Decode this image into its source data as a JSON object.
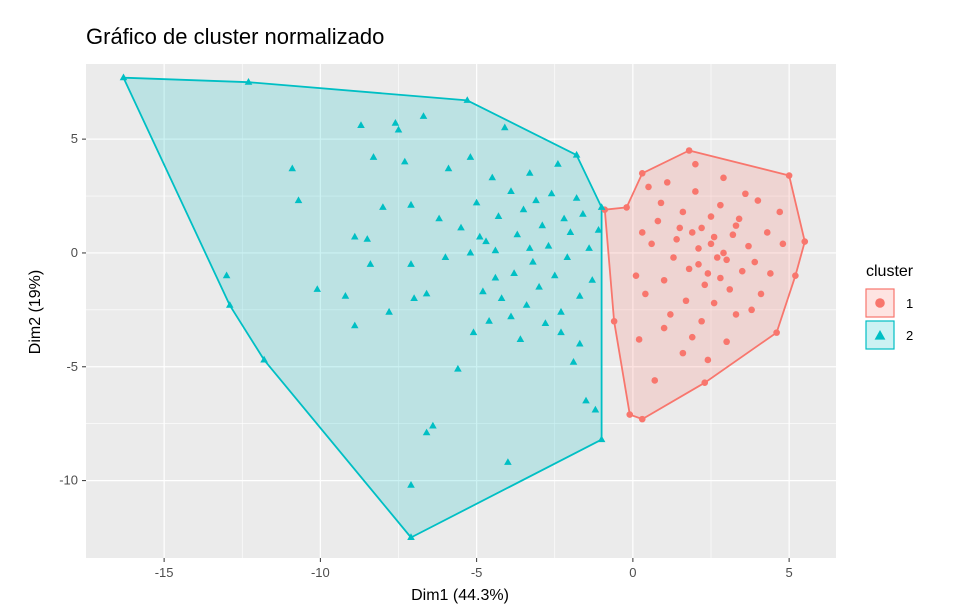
{
  "chart_data": {
    "type": "scatter",
    "title": "Gráfico de cluster normalizado",
    "xlabel": "Dim1 (44.3%)",
    "ylabel": "Dim2 (19%)",
    "xlim": [
      -17.5,
      6.5
    ],
    "ylim": [
      -13.4,
      8.3
    ],
    "x_ticks": [
      -15,
      -10,
      -5,
      0,
      5
    ],
    "x_tick_labels": [
      "-15",
      "-10",
      "-5",
      "0",
      "5"
    ],
    "y_ticks": [
      -10,
      -5,
      0,
      5
    ],
    "y_tick_labels": [
      "-10",
      "-5",
      "0",
      "5"
    ],
    "grid": true,
    "legend": {
      "title": "cluster",
      "position": "right"
    },
    "colors": {
      "1": "#F8766D",
      "2": "#00BFC4",
      "panel": "#EBEBEB",
      "grid": "#FFFFFF"
    },
    "series": [
      {
        "name": "1",
        "marker": "circle",
        "hull": [
          [
            -0.2,
            2.0
          ],
          [
            0.3,
            3.5
          ],
          [
            1.8,
            4.5
          ],
          [
            5.0,
            3.4
          ],
          [
            5.5,
            0.5
          ],
          [
            5.2,
            -1.0
          ],
          [
            4.6,
            -3.5
          ],
          [
            2.3,
            -5.7
          ],
          [
            0.3,
            -7.3
          ],
          [
            -0.1,
            -7.1
          ],
          [
            -0.6,
            -3.0
          ],
          [
            -0.9,
            1.9
          ]
        ],
        "points": [
          [
            -0.2,
            2.0
          ],
          [
            0.3,
            3.5
          ],
          [
            1.8,
            4.5
          ],
          [
            5.0,
            3.4
          ],
          [
            5.5,
            0.5
          ],
          [
            5.2,
            -1.0
          ],
          [
            4.6,
            -3.5
          ],
          [
            2.3,
            -5.7
          ],
          [
            0.3,
            -7.3
          ],
          [
            -0.1,
            -7.1
          ],
          [
            -0.6,
            -3.0
          ],
          [
            -0.9,
            1.9
          ],
          [
            2.1,
            0.2
          ],
          [
            2.6,
            0.7
          ],
          [
            3.0,
            -0.3
          ],
          [
            1.5,
            1.1
          ],
          [
            2.4,
            -0.9
          ],
          [
            3.4,
            1.5
          ],
          [
            1.0,
            -1.2
          ],
          [
            2.8,
            2.1
          ],
          [
            3.9,
            -0.4
          ],
          [
            1.7,
            -2.1
          ],
          [
            0.6,
            0.4
          ],
          [
            4.3,
            0.9
          ],
          [
            2.0,
            2.7
          ],
          [
            3.1,
            -1.6
          ],
          [
            1.3,
            -0.2
          ],
          [
            0.4,
            -1.8
          ],
          [
            3.6,
            2.6
          ],
          [
            2.2,
            -3.0
          ],
          [
            0.9,
            2.2
          ],
          [
            4.1,
            -1.8
          ],
          [
            1.6,
            -4.4
          ],
          [
            3.3,
            -2.7
          ],
          [
            0.2,
            -3.8
          ],
          [
            2.9,
            3.3
          ],
          [
            1.1,
            3.1
          ],
          [
            4.7,
            1.8
          ],
          [
            0.7,
            -5.6
          ],
          [
            1.9,
            -3.7
          ],
          [
            2.5,
            1.6
          ],
          [
            3.7,
            0.3
          ],
          [
            2.7,
            -0.2
          ],
          [
            1.4,
            0.6
          ],
          [
            2.3,
            -1.4
          ],
          [
            3.2,
            0.8
          ],
          [
            0.8,
            1.4
          ],
          [
            4.0,
            2.3
          ],
          [
            1.2,
            -2.7
          ],
          [
            2.6,
            -2.2
          ],
          [
            3.8,
            -2.5
          ],
          [
            0.5,
            2.9
          ],
          [
            2.0,
            3.9
          ],
          [
            4.4,
            -0.9
          ],
          [
            1.8,
            -0.7
          ],
          [
            2.9,
            0.0
          ],
          [
            2.2,
            1.1
          ],
          [
            3.5,
            -0.8
          ],
          [
            1.6,
            1.8
          ],
          [
            0.3,
            0.9
          ],
          [
            4.8,
            0.4
          ],
          [
            2.4,
            -4.7
          ],
          [
            3.0,
            -3.9
          ],
          [
            1.0,
            -3.3
          ],
          [
            0.1,
            -1.0
          ],
          [
            2.8,
            -1.1
          ],
          [
            1.9,
            0.9
          ],
          [
            3.3,
            1.2
          ],
          [
            2.1,
            -0.5
          ],
          [
            2.5,
            0.4
          ]
        ]
      },
      {
        "name": "2",
        "marker": "triangle",
        "hull": [
          [
            -16.3,
            7.7
          ],
          [
            -12.3,
            7.5
          ],
          [
            -5.3,
            6.7
          ],
          [
            -1.8,
            4.3
          ],
          [
            -1.0,
            2.0
          ],
          [
            -1.0,
            -8.2
          ],
          [
            -7.1,
            -12.5
          ],
          [
            -11.8,
            -4.7
          ],
          [
            -12.9,
            -2.3
          ]
        ],
        "points": [
          [
            -16.3,
            7.7
          ],
          [
            -12.3,
            7.5
          ],
          [
            -5.3,
            6.7
          ],
          [
            -1.8,
            4.3
          ],
          [
            -1.0,
            2.0
          ],
          [
            -1.0,
            -8.2
          ],
          [
            -7.1,
            -12.5
          ],
          [
            -11.8,
            -4.7
          ],
          [
            -12.9,
            -2.3
          ],
          [
            -13.0,
            -1.0
          ],
          [
            -10.9,
            3.7
          ],
          [
            -10.7,
            2.3
          ],
          [
            -10.1,
            -1.6
          ],
          [
            -9.2,
            -1.9
          ],
          [
            -8.9,
            -3.2
          ],
          [
            -8.9,
            0.7
          ],
          [
            -8.7,
            5.6
          ],
          [
            -8.5,
            0.6
          ],
          [
            -8.4,
            -0.5
          ],
          [
            -8.3,
            4.2
          ],
          [
            -8.0,
            2.0
          ],
          [
            -7.8,
            -2.6
          ],
          [
            -7.6,
            5.7
          ],
          [
            -7.5,
            5.4
          ],
          [
            -7.3,
            4.0
          ],
          [
            -7.1,
            2.1
          ],
          [
            -7.1,
            -0.5
          ],
          [
            -7.0,
            -2.0
          ],
          [
            -7.1,
            -10.2
          ],
          [
            -6.7,
            6.0
          ],
          [
            -6.6,
            -1.8
          ],
          [
            -6.6,
            -7.9
          ],
          [
            -6.4,
            -7.6
          ],
          [
            -6.2,
            1.5
          ],
          [
            -6.0,
            -0.2
          ],
          [
            -5.9,
            3.7
          ],
          [
            -5.6,
            -5.1
          ],
          [
            -5.5,
            1.1
          ],
          [
            -5.2,
            4.2
          ],
          [
            -5.1,
            -3.5
          ],
          [
            -5.0,
            2.2
          ],
          [
            -4.8,
            -1.7
          ],
          [
            -4.7,
            0.5
          ],
          [
            -4.6,
            -3.0
          ],
          [
            -4.5,
            3.3
          ],
          [
            -4.4,
            0.1
          ],
          [
            -4.3,
            1.6
          ],
          [
            -4.2,
            -2.0
          ],
          [
            -4.1,
            5.5
          ],
          [
            -4.0,
            -9.2
          ],
          [
            -3.9,
            2.7
          ],
          [
            -3.8,
            -0.9
          ],
          [
            -3.7,
            0.8
          ],
          [
            -3.6,
            -3.8
          ],
          [
            -3.5,
            1.9
          ],
          [
            -3.4,
            -2.3
          ],
          [
            -3.3,
            3.5
          ],
          [
            -3.2,
            -0.4
          ],
          [
            -3.1,
            2.3
          ],
          [
            -3.0,
            -1.5
          ],
          [
            -2.9,
            1.2
          ],
          [
            -2.8,
            -3.1
          ],
          [
            -2.7,
            0.3
          ],
          [
            -2.6,
            2.6
          ],
          [
            -2.5,
            -1.0
          ],
          [
            -2.4,
            3.9
          ],
          [
            -2.3,
            -2.6
          ],
          [
            -2.2,
            1.5
          ],
          [
            -2.1,
            -0.2
          ],
          [
            -2.0,
            0.9
          ],
          [
            -1.9,
            -4.8
          ],
          [
            -1.8,
            2.4
          ],
          [
            -1.7,
            -1.9
          ],
          [
            -1.6,
            1.7
          ],
          [
            -1.5,
            -6.5
          ],
          [
            -1.4,
            0.2
          ],
          [
            -1.3,
            -1.2
          ],
          [
            -1.2,
            -6.9
          ],
          [
            -1.1,
            1.0
          ],
          [
            -5.2,
            0.0
          ],
          [
            -4.9,
            0.7
          ],
          [
            -3.3,
            0.2
          ],
          [
            -2.3,
            -3.5
          ],
          [
            -1.7,
            -4.0
          ],
          [
            -4.4,
            -1.1
          ],
          [
            -3.9,
            -2.8
          ]
        ]
      }
    ]
  }
}
